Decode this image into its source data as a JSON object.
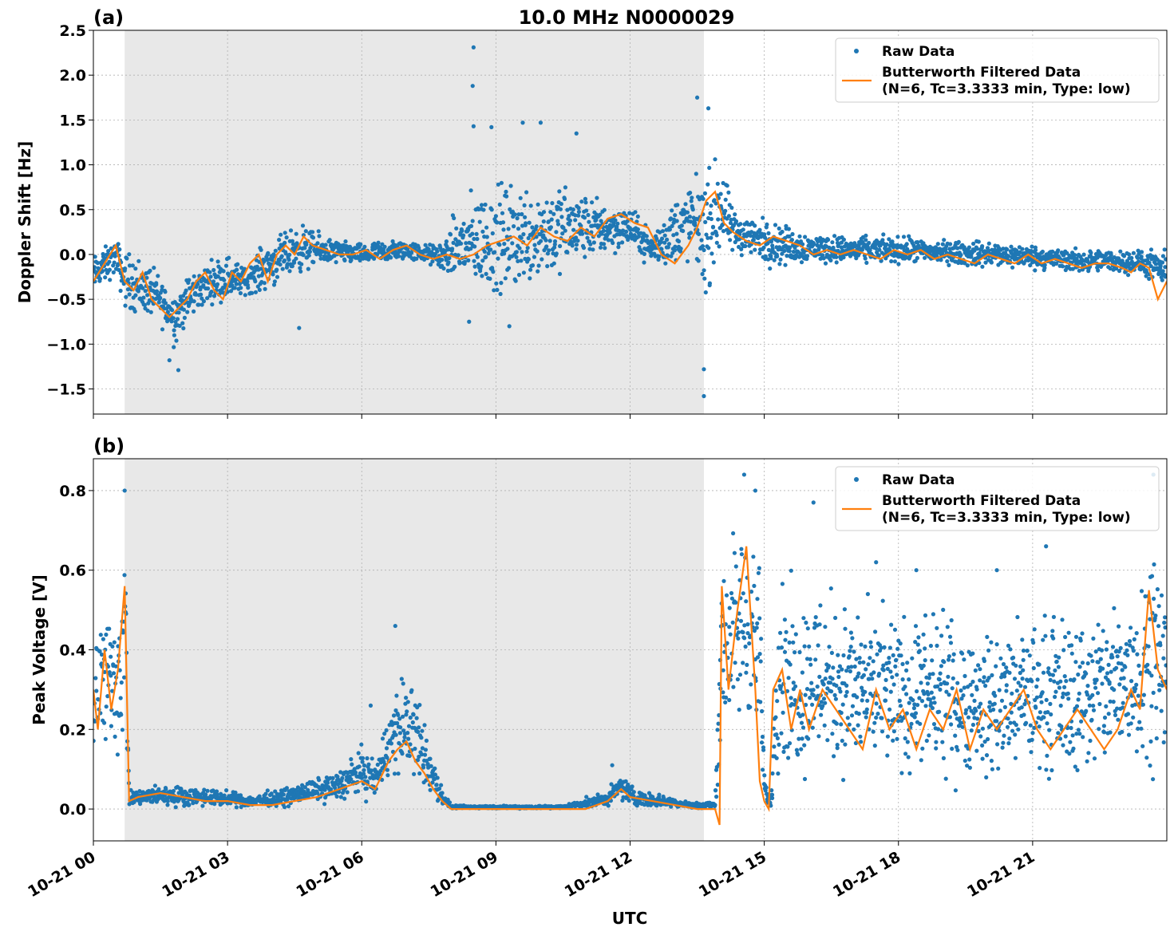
{
  "chart_data": {
    "title": "10.0 MHz N0000029",
    "type": "scatter",
    "xlabel": "UTC",
    "x_ticks": [
      "10-21 00",
      "10-21 03",
      "10-21 06",
      "10-21 09",
      "10-21 12",
      "10-21 15",
      "10-21 18",
      "10-21 21"
    ],
    "xlim_hours": [
      0,
      24
    ],
    "shaded_interval_hours": [
      0.7,
      13.65
    ],
    "grid": true,
    "legend_placement": "upper right",
    "colors": {
      "raw": "#1f77b4",
      "filtered": "#ff7f0e",
      "shade": "#e8e8e8"
    },
    "panels": [
      {
        "tag": "(a)",
        "ylabel": "Doppler Shift [Hz]",
        "ylim": [
          -1.78,
          2.5
        ],
        "y_ticks": [
          2.5,
          2.0,
          1.5,
          1.0,
          0.5,
          0.0,
          -0.5,
          -1.0,
          -1.5
        ],
        "y_tick_labels": [
          "2.5",
          "2.0",
          "1.5",
          "1.0",
          "0.5",
          "0.0",
          "−0.5",
          "−1.0",
          "−1.5"
        ],
        "legend": [
          "Raw Data",
          "Butterworth Filtered Data",
          "(N=6, Tc=3.3333 min, Type: low)"
        ],
        "filtered_series": {
          "name": "Butterworth Filtered Data",
          "x_hours": [
            0,
            0.25,
            0.5,
            0.7,
            0.9,
            1.1,
            1.3,
            1.5,
            1.7,
            1.9,
            2.1,
            2.3,
            2.5,
            2.7,
            2.9,
            3.1,
            3.3,
            3.5,
            3.7,
            3.9,
            4.1,
            4.3,
            4.5,
            4.7,
            4.9,
            5.2,
            5.5,
            5.8,
            6.1,
            6.4,
            6.7,
            7.0,
            7.3,
            7.6,
            7.9,
            8.2,
            8.5,
            8.8,
            9.1,
            9.4,
            9.7,
            10.0,
            10.3,
            10.6,
            10.9,
            11.2,
            11.5,
            11.8,
            12.1,
            12.4,
            12.7,
            13.0,
            13.3,
            13.5,
            13.7,
            13.9,
            14.1,
            14.3,
            14.6,
            14.9,
            15.2,
            15.5,
            15.8,
            16.1,
            16.4,
            16.7,
            17.0,
            17.3,
            17.6,
            17.9,
            18.2,
            18.5,
            18.8,
            19.1,
            19.4,
            19.7,
            20.0,
            20.3,
            20.6,
            20.9,
            21.2,
            21.5,
            21.8,
            22.1,
            22.4,
            22.7,
            23.0,
            23.2,
            23.4,
            23.6,
            23.8,
            24.0
          ],
          "values": [
            -0.3,
            -0.1,
            0.1,
            -0.3,
            -0.4,
            -0.2,
            -0.5,
            -0.6,
            -0.7,
            -0.6,
            -0.5,
            -0.3,
            -0.2,
            -0.4,
            -0.5,
            -0.2,
            -0.3,
            -0.1,
            0.0,
            -0.3,
            0.0,
            0.1,
            0.0,
            0.2,
            0.1,
            0.05,
            0.0,
            0.0,
            0.05,
            -0.05,
            0.05,
            0.1,
            0.0,
            -0.05,
            0.0,
            -0.05,
            0.0,
            0.1,
            0.15,
            0.2,
            0.1,
            0.3,
            0.2,
            0.15,
            0.3,
            0.2,
            0.4,
            0.45,
            0.35,
            0.3,
            0.0,
            -0.1,
            0.1,
            0.3,
            0.6,
            0.7,
            0.35,
            0.25,
            0.15,
            0.1,
            0.2,
            0.15,
            0.1,
            0.0,
            0.05,
            0.0,
            0.05,
            0.0,
            -0.05,
            0.05,
            0.0,
            0.05,
            -0.05,
            0.0,
            -0.05,
            -0.1,
            0.0,
            -0.05,
            -0.1,
            0.0,
            -0.1,
            -0.05,
            -0.1,
            -0.15,
            -0.1,
            -0.1,
            -0.15,
            -0.2,
            -0.1,
            -0.15,
            -0.5,
            -0.3
          ]
        },
        "raw_envelope": {
          "name": "Raw Data",
          "x_hours": [
            0,
            0.5,
            0.7,
            1.0,
            1.4,
            1.8,
            2.2,
            2.6,
            3.0,
            3.4,
            3.8,
            4.2,
            4.6,
            5.0,
            5.5,
            6.0,
            6.5,
            7.0,
            7.5,
            7.8,
            8.2,
            8.6,
            9.0,
            9.5,
            10.0,
            10.5,
            11.0,
            11.5,
            12.0,
            12.5,
            13.0,
            13.4,
            13.7,
            14.0,
            14.3,
            14.7,
            15.0,
            15.5,
            16.0,
            17.0,
            18.0,
            19.0,
            20.0,
            21.0,
            22.0,
            23.0,
            23.5,
            24.0
          ],
          "upper": [
            0.05,
            0.25,
            0.15,
            0.1,
            -0.1,
            -0.3,
            -0.1,
            0.0,
            0.1,
            -0.1,
            0.2,
            0.3,
            0.45,
            0.3,
            0.2,
            0.15,
            0.2,
            0.2,
            0.15,
            0.2,
            0.7,
            0.9,
            1.0,
            1.0,
            1.0,
            0.95,
            0.8,
            0.7,
            0.6,
            0.3,
            0.8,
            1.0,
            1.1,
            1.3,
            0.6,
            0.5,
            0.5,
            0.4,
            0.3,
            0.25,
            0.25,
            0.2,
            0.2,
            0.15,
            0.1,
            0.1,
            0.1,
            0.1
          ],
          "lower": [
            -0.5,
            -0.3,
            -0.7,
            -0.8,
            -0.8,
            -1.1,
            -0.8,
            -0.6,
            -0.6,
            -0.5,
            -0.5,
            -0.4,
            -0.3,
            -0.2,
            -0.15,
            -0.15,
            -0.15,
            -0.1,
            -0.15,
            -0.25,
            -0.5,
            -0.6,
            -0.7,
            -0.6,
            -0.5,
            -0.4,
            -0.2,
            -0.1,
            0.0,
            -0.2,
            -0.3,
            -0.2,
            -0.7,
            -0.2,
            -0.1,
            -0.1,
            -0.2,
            -0.2,
            -0.15,
            -0.15,
            -0.15,
            -0.15,
            -0.2,
            -0.2,
            -0.25,
            -0.25,
            -0.3,
            -0.5
          ]
        },
        "raw_outliers": [
          {
            "x": 8.5,
            "y": 2.31
          },
          {
            "x": 8.48,
            "y": 1.88
          },
          {
            "x": 8.5,
            "y": 1.43
          },
          {
            "x": 8.9,
            "y": 1.42
          },
          {
            "x": 9.6,
            "y": 1.47
          },
          {
            "x": 10.0,
            "y": 1.47
          },
          {
            "x": 10.8,
            "y": 1.35
          },
          {
            "x": 1.9,
            "y": -1.29
          },
          {
            "x": 13.5,
            "y": 1.75
          },
          {
            "x": 13.75,
            "y": 1.63
          },
          {
            "x": 13.65,
            "y": -1.58
          },
          {
            "x": 13.65,
            "y": -1.28
          },
          {
            "x": 8.4,
            "y": -0.75
          },
          {
            "x": 9.3,
            "y": -0.8
          },
          {
            "x": 4.6,
            "y": -0.82
          },
          {
            "x": 1.7,
            "y": -1.18
          }
        ]
      },
      {
        "tag": "(b)",
        "ylabel": "Peak Voltage [V]",
        "ylim": [
          -0.08,
          0.88
        ],
        "y_ticks": [
          0.8,
          0.6,
          0.4,
          0.2,
          0.0
        ],
        "y_tick_labels": [
          "0.8",
          "0.6",
          "0.4",
          "0.2",
          "0.0"
        ],
        "legend": [
          "Raw Data",
          "Butterworth Filtered Data",
          "(N=6, Tc=3.3333 min, Type: low)"
        ],
        "filtered_series": {
          "name": "Butterworth Filtered Data",
          "x_hours": [
            0,
            0.1,
            0.25,
            0.4,
            0.55,
            0.7,
            0.8,
            1.0,
            1.5,
            2.0,
            2.5,
            3.0,
            3.5,
            4.0,
            4.5,
            5.0,
            5.5,
            6.0,
            6.3,
            6.6,
            6.8,
            7.0,
            7.2,
            7.4,
            7.6,
            7.8,
            8.0,
            9.0,
            10.0,
            11.0,
            11.5,
            11.8,
            12.0,
            12.5,
            13.0,
            13.5,
            13.9,
            14.0,
            14.05,
            14.2,
            14.4,
            14.6,
            14.8,
            14.9,
            15.0,
            15.1,
            15.2,
            15.4,
            15.6,
            15.8,
            16.0,
            16.3,
            16.6,
            16.9,
            17.2,
            17.5,
            17.8,
            18.1,
            18.4,
            18.7,
            19.0,
            19.3,
            19.6,
            19.9,
            20.2,
            20.5,
            20.8,
            21.1,
            21.4,
            21.7,
            22.0,
            22.3,
            22.6,
            22.9,
            23.2,
            23.4,
            23.6,
            23.8,
            24.0
          ],
          "values": [
            0.3,
            0.2,
            0.4,
            0.25,
            0.35,
            0.56,
            0.02,
            0.03,
            0.04,
            0.03,
            0.02,
            0.02,
            0.01,
            0.01,
            0.02,
            0.03,
            0.05,
            0.07,
            0.05,
            0.12,
            0.15,
            0.17,
            0.12,
            0.09,
            0.05,
            0.02,
            0.0,
            0.0,
            0.0,
            0.0,
            0.02,
            0.05,
            0.03,
            0.02,
            0.01,
            0.0,
            0.0,
            -0.04,
            0.56,
            0.3,
            0.5,
            0.66,
            0.3,
            0.07,
            0.02,
            0.0,
            0.3,
            0.35,
            0.2,
            0.3,
            0.2,
            0.3,
            0.25,
            0.2,
            0.15,
            0.3,
            0.2,
            0.25,
            0.15,
            0.25,
            0.2,
            0.3,
            0.15,
            0.25,
            0.2,
            0.25,
            0.3,
            0.2,
            0.15,
            0.2,
            0.25,
            0.2,
            0.15,
            0.2,
            0.3,
            0.25,
            0.55,
            0.35,
            0.3
          ]
        },
        "raw_envelope": {
          "name": "Raw Data",
          "x_hours": [
            0,
            0.3,
            0.6,
            0.72,
            0.8,
            1.5,
            2.5,
            3.5,
            4.3,
            4.8,
            5.4,
            6.0,
            6.3,
            6.6,
            6.9,
            7.2,
            7.5,
            7.8,
            8.0,
            9.0,
            10.5,
            11.5,
            11.8,
            12.2,
            12.8,
            13.3,
            13.9,
            14.05,
            14.3,
            14.6,
            14.9,
            15.0,
            15.15,
            15.3,
            15.7,
            16.2,
            17.0,
            18.0,
            19.0,
            20.0,
            21.0,
            22.0,
            22.8,
            23.3,
            23.7,
            24.0
          ],
          "upper": [
            0.6,
            0.55,
            0.65,
            0.78,
            0.05,
            0.07,
            0.06,
            0.04,
            0.06,
            0.08,
            0.1,
            0.18,
            0.12,
            0.3,
            0.38,
            0.35,
            0.2,
            0.06,
            0.01,
            0.01,
            0.01,
            0.05,
            0.1,
            0.05,
            0.04,
            0.02,
            0.02,
            0.8,
            0.75,
            0.83,
            0.7,
            0.1,
            0.03,
            0.72,
            0.6,
            0.65,
            0.58,
            0.55,
            0.55,
            0.5,
            0.55,
            0.55,
            0.6,
            0.65,
            0.8,
            0.6
          ],
          "lower": [
            0.05,
            0.08,
            0.05,
            0.1,
            0.0,
            0.0,
            0.0,
            0.0,
            0.0,
            0.01,
            0.01,
            0.01,
            0.02,
            0.03,
            0.04,
            0.03,
            0.01,
            0.0,
            0.0,
            0.0,
            0.0,
            0.0,
            0.01,
            0.0,
            0.0,
            0.0,
            0.0,
            0.05,
            0.1,
            0.15,
            0.05,
            0.0,
            0.0,
            0.02,
            0.01,
            0.02,
            0.02,
            0.02,
            0.02,
            0.02,
            0.02,
            0.02,
            0.02,
            0.03,
            0.05,
            0.05
          ]
        },
        "raw_outliers": [
          {
            "x": 6.75,
            "y": 0.46
          },
          {
            "x": 6.2,
            "y": 0.26
          },
          {
            "x": 14.55,
            "y": 0.84
          },
          {
            "x": 14.8,
            "y": 0.8
          },
          {
            "x": 16.1,
            "y": 0.77
          },
          {
            "x": 23.7,
            "y": 0.84
          },
          {
            "x": 21.3,
            "y": 0.66
          },
          {
            "x": 20.2,
            "y": 0.6
          },
          {
            "x": 11.6,
            "y": 0.11
          },
          {
            "x": 17.5,
            "y": 0.62
          },
          {
            "x": 18.4,
            "y": 0.6
          },
          {
            "x": 0.7,
            "y": 0.8
          }
        ]
      }
    ]
  }
}
